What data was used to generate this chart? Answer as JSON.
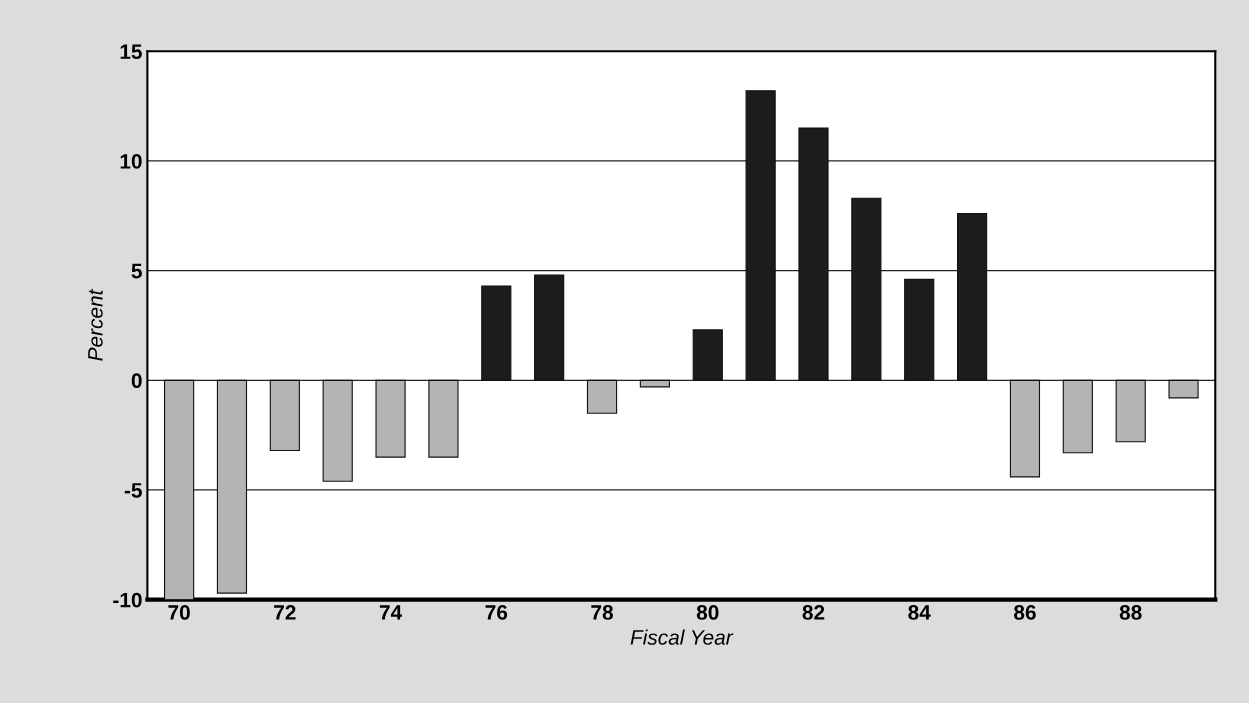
{
  "chart_data": {
    "type": "bar",
    "xlabel": "Fiscal Year",
    "ylabel": "Percent",
    "categories": [
      "70",
      null,
      "72",
      null,
      "74",
      null,
      "76",
      null,
      "78",
      null,
      "80",
      null,
      "82",
      null,
      "84",
      null,
      "86",
      null,
      "88",
      null
    ],
    "values": [
      -10,
      -9.7,
      -3.2,
      -4.6,
      -3.5,
      -3.5,
      4.3,
      4.8,
      -1.5,
      -0.3,
      2.3,
      13.2,
      11.5,
      8.3,
      4.6,
      7.6,
      -4.4,
      -3.3,
      -2.8,
      -0.8
    ],
    "colors": [
      "#b4b4b4",
      "#b4b4b4",
      "#b4b4b4",
      "#b4b4b4",
      "#b4b4b4",
      "#b4b4b4",
      "#1c1c1c",
      "#1c1c1c",
      "#b4b4b4",
      "#b4b4b4",
      "#1c1c1c",
      "#1c1c1c",
      "#1c1c1c",
      "#1c1c1c",
      "#1c1c1c",
      "#1c1c1c",
      "#b4b4b4",
      "#b4b4b4",
      "#b4b4b4",
      "#b4b4b4"
    ],
    "ylim": [
      -10,
      15
    ],
    "yticks": [
      -10,
      -5,
      0,
      5,
      10,
      15
    ],
    "grid": "y"
  }
}
